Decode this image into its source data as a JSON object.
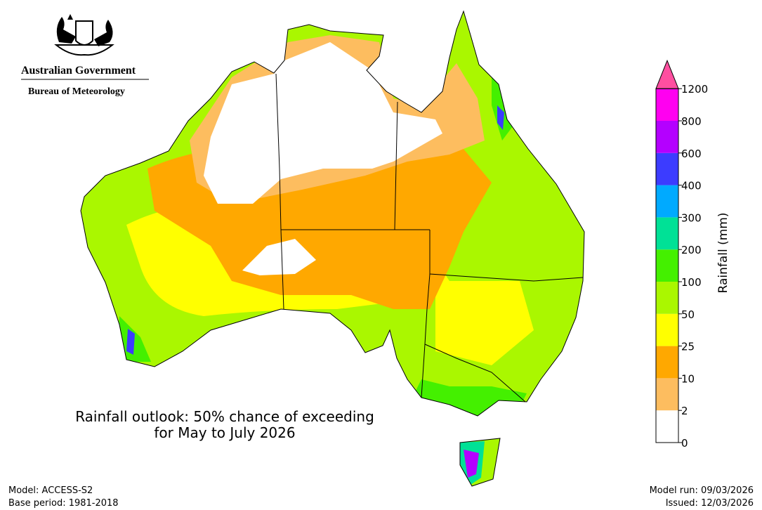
{
  "header": {
    "government": "Australian Government",
    "agency": "Bureau of Meteorology"
  },
  "title": [
    "Rainfall outlook: 50% chance of exceeding",
    "for May to July 2026"
  ],
  "legend": {
    "label": "Rainfall (mm)",
    "ticks": [
      0,
      2,
      10,
      25,
      50,
      100,
      200,
      300,
      400,
      600,
      800,
      1200
    ],
    "colors": [
      "#ffffff",
      "#fdbd5f",
      "#ffa800",
      "#ffff00",
      "#aaf700",
      "#44f000",
      "#00e196",
      "#00aaff",
      "#3c3cff",
      "#b400ff",
      "#ff00f0"
    ],
    "extend_color": "#ff4fa0"
  },
  "footer": {
    "model": "Model: ACCESS-S2",
    "base_period": "Base period: 1981-2018",
    "model_run": "Model run: 09/03/2026",
    "issued": "Issued: 12/03/2026"
  }
}
